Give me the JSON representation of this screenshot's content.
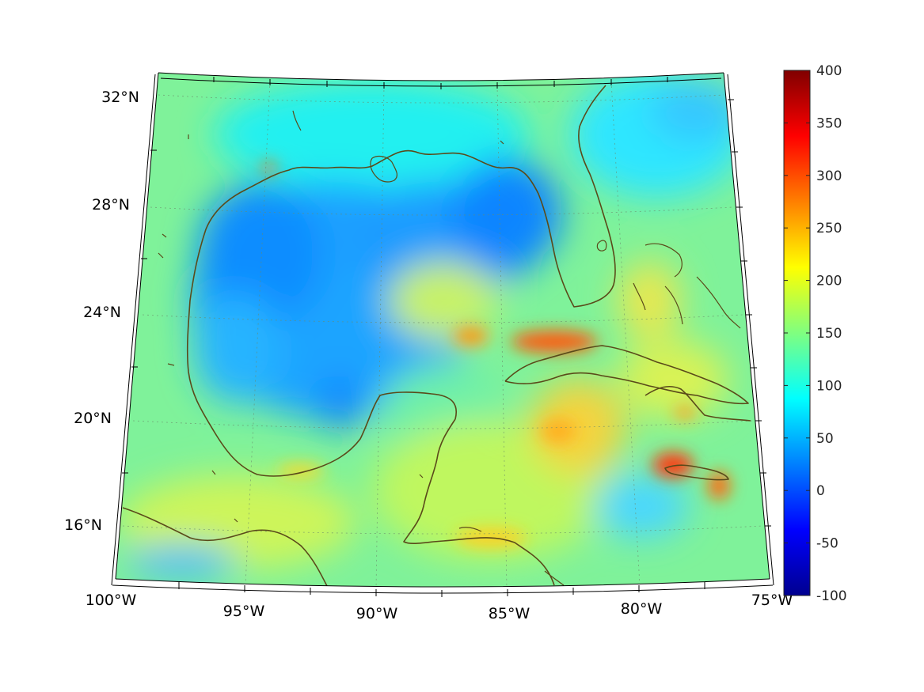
{
  "map": {
    "lon_range": [
      -100,
      -75
    ],
    "lat_range": [
      14,
      32.5
    ],
    "lon_ticks": [
      {
        "value": -100,
        "label": "100°W"
      },
      {
        "value": -95,
        "label": "95°W"
      },
      {
        "value": -90,
        "label": "90°W"
      },
      {
        "value": -85,
        "label": "85°W"
      },
      {
        "value": -80,
        "label": "80°W"
      },
      {
        "value": -75,
        "label": "75°W"
      }
    ],
    "lat_ticks": [
      {
        "value": 16,
        "label": "16°N"
      },
      {
        "value": 20,
        "label": "20°N"
      },
      {
        "value": 24,
        "label": "24°N"
      },
      {
        "value": 28,
        "label": "28°N"
      },
      {
        "value": 32,
        "label": "32°N"
      }
    ],
    "grid": true
  },
  "colorbar": {
    "colormap": "jet",
    "range": [
      -100,
      400
    ],
    "ticks": [
      "400",
      "350",
      "300",
      "250",
      "200",
      "150",
      "100",
      "50",
      "0",
      "-50",
      "-100"
    ]
  },
  "colors": {
    "coastline": "#5a4a1a",
    "background": "#ffffff"
  }
}
